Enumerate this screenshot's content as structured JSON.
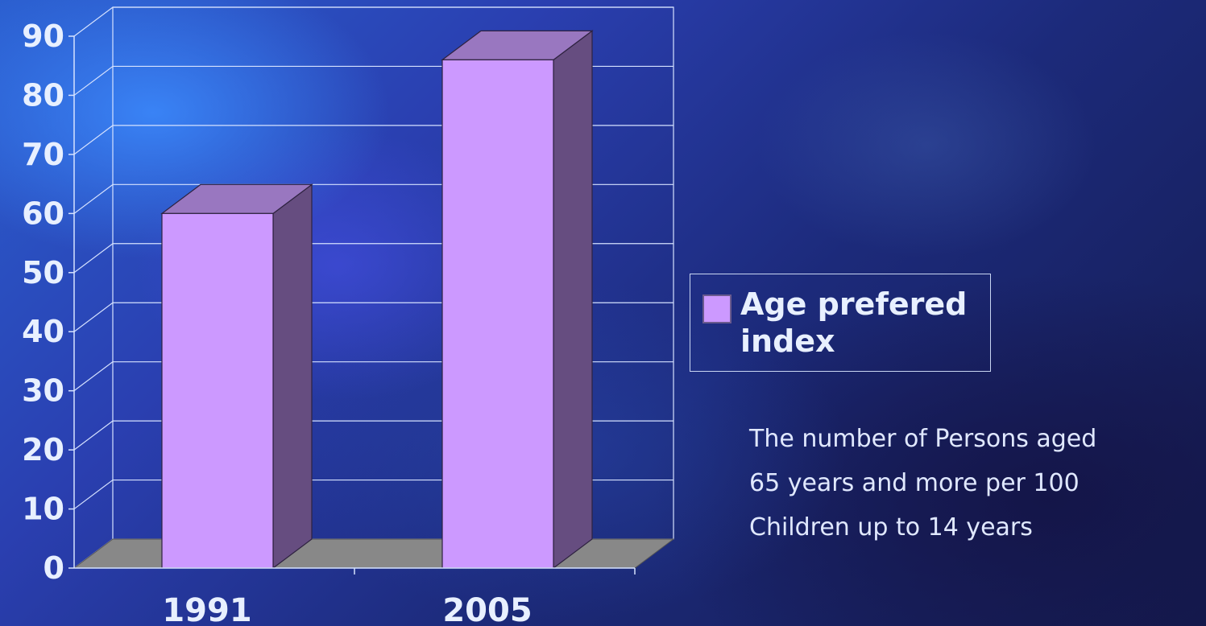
{
  "chart_data": {
    "type": "bar",
    "categories": [
      "1991",
      "2005"
    ],
    "series": [
      {
        "name": "Age prefered index",
        "values": [
          60,
          86
        ]
      }
    ],
    "yticks": [
      "0",
      "10",
      "20",
      "30",
      "40",
      "50",
      "60",
      "70",
      "80",
      "90"
    ],
    "ylim": [
      0,
      90
    ],
    "grid": true,
    "three_d": true,
    "legend_position": "right",
    "colors": {
      "bar_front": "#cc99ff",
      "bar_top": "#9977c0",
      "bar_side": "#664d80",
      "floor": "#888888"
    }
  },
  "legend": {
    "label_line1": "Age prefered",
    "label_line2": "index"
  },
  "note": {
    "line1": "The number of Persons aged",
    "line2": "65 years and more per 100",
    "line3": "Children up to 14 years"
  }
}
